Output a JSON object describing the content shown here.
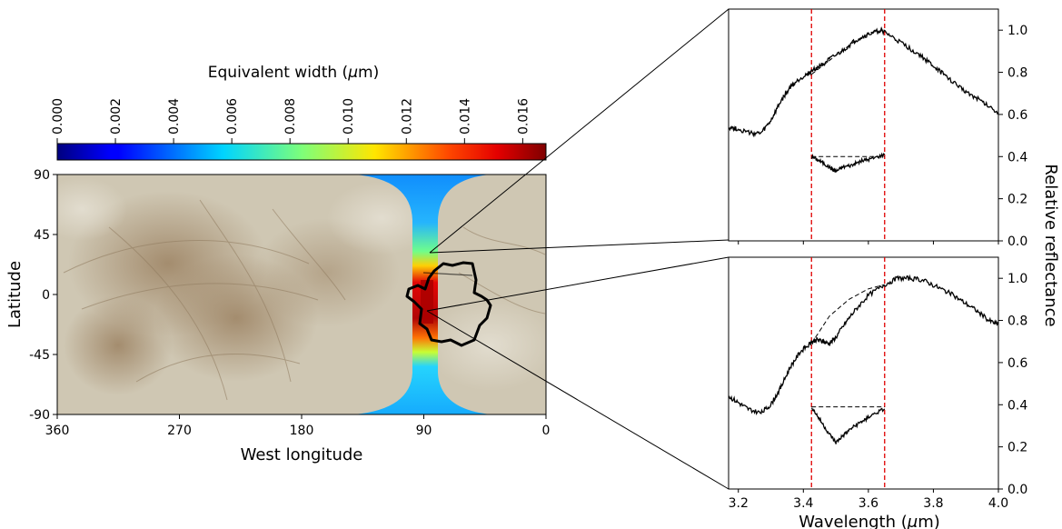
{
  "colorbar": {
    "label_prefix": "Equivalent width (",
    "label_mu": "μ",
    "label_suffix": "m)",
    "ticks": [
      "0.000",
      "0.002",
      "0.004",
      "0.006",
      "0.008",
      "0.010",
      "0.012",
      "0.014",
      "0.016"
    ],
    "range": [
      0.0,
      0.0168
    ],
    "colormap": "jet"
  },
  "map": {
    "xlabel": "West longitude",
    "ylabel": "Latitude",
    "xticks": [
      "360",
      "270",
      "180",
      "90",
      "0"
    ],
    "yticks": [
      "90",
      "45",
      "0",
      "-45",
      "-90"
    ],
    "xlim": [
      360,
      0
    ],
    "ylim": [
      -90,
      90
    ],
    "surface_colors": {
      "base": "#cfc7b3",
      "dark": "#a48c6e",
      "band_low": "#1a9dff",
      "band_peak": "#b40000"
    }
  },
  "spectra": {
    "xlabel_prefix": "Wavelength (",
    "xlabel_mu": "μ",
    "xlabel_suffix": "m)",
    "ylabel": "Relative reflectance",
    "xticks": [
      "3.2",
      "3.4",
      "3.6",
      "3.8",
      "4.0"
    ],
    "yticks": [
      "0.0",
      "0.2",
      "0.4",
      "0.6",
      "0.8",
      "1.0"
    ],
    "xlim": [
      3.17,
      4.0
    ],
    "ylim": [
      0.0,
      1.1
    ],
    "band_limits_um": [
      3.425,
      3.65
    ],
    "band_limit_color": "#e00000"
  },
  "chart_data": [
    {
      "type": "heatmap",
      "description_ref": "map",
      "xlabel": "West longitude",
      "ylabel": "Latitude",
      "xlim": [
        360,
        0
      ],
      "ylim": [
        -90,
        90
      ],
      "colorbar_label": "Equivalent width (μm)",
      "colorbar_range": [
        0.0,
        0.0168
      ],
      "band_profile": {
        "longitude_center": 90,
        "latitudes": [
          -90,
          -75,
          -60,
          -45,
          -30,
          -20,
          -10,
          0,
          10,
          20,
          30,
          45,
          60,
          75,
          90
        ],
        "values": [
          0.0045,
          0.0055,
          0.0065,
          0.0085,
          0.0115,
          0.0155,
          0.0165,
          0.0165,
          0.016,
          0.0135,
          0.0105,
          0.0075,
          0.006,
          0.0055,
          0.005
        ]
      }
    },
    {
      "type": "line",
      "panel": "top",
      "xlabel": "Wavelength (μm)",
      "ylabel": "Relative reflectance",
      "xlim": [
        3.17,
        4.0
      ],
      "ylim": [
        0.0,
        1.1
      ],
      "series": [
        {
          "x": [
            3.17,
            3.2,
            3.24,
            3.27,
            3.3,
            3.33,
            3.36,
            3.39,
            3.42,
            3.45,
            3.48,
            3.52,
            3.56,
            3.6,
            3.64,
            3.68,
            3.72,
            3.76,
            3.8,
            3.84,
            3.88,
            3.92,
            3.96,
            4.0
          ],
          "y": [
            0.54,
            0.53,
            0.51,
            0.51,
            0.57,
            0.66,
            0.73,
            0.77,
            0.8,
            0.83,
            0.86,
            0.9,
            0.95,
            0.98,
            1.0,
            0.96,
            0.92,
            0.88,
            0.83,
            0.78,
            0.73,
            0.69,
            0.65,
            0.61
          ]
        },
        {
          "x": [
            3.425,
            3.45,
            3.48,
            3.5,
            3.52,
            3.55,
            3.58,
            3.61,
            3.65
          ],
          "y": [
            0.4,
            0.38,
            0.35,
            0.33,
            0.35,
            0.36,
            0.38,
            0.39,
            0.41
          ]
        },
        {
          "x": [
            3.425,
            3.5,
            3.56,
            3.61,
            3.65
          ],
          "y": [
            0.79,
            0.88,
            0.95,
            0.99,
            1.0
          ]
        },
        {
          "x": [
            3.425,
            3.65
          ],
          "y": [
            0.4,
            0.4
          ]
        }
      ]
    },
    {
      "type": "line",
      "panel": "bottom",
      "xlabel": "Wavelength (μm)",
      "ylabel": "Relative reflectance",
      "xlim": [
        3.17,
        4.0
      ],
      "ylim": [
        0.0,
        1.1
      ],
      "series": [
        {
          "x": [
            3.17,
            3.2,
            3.23,
            3.27,
            3.3,
            3.33,
            3.36,
            3.39,
            3.42,
            3.44,
            3.46,
            3.48,
            3.5,
            3.53,
            3.56,
            3.6,
            3.65,
            3.69,
            3.73,
            3.77,
            3.81,
            3.85,
            3.89,
            3.93,
            3.97,
            4.0
          ],
          "y": [
            0.44,
            0.41,
            0.38,
            0.36,
            0.4,
            0.48,
            0.58,
            0.65,
            0.69,
            0.71,
            0.7,
            0.69,
            0.72,
            0.79,
            0.85,
            0.92,
            0.97,
            1.0,
            1.0,
            0.99,
            0.96,
            0.93,
            0.89,
            0.85,
            0.8,
            0.78
          ]
        },
        {
          "x": [
            3.425,
            3.45,
            3.48,
            3.5,
            3.52,
            3.55,
            3.58,
            3.61,
            3.65
          ],
          "y": [
            0.39,
            0.33,
            0.26,
            0.22,
            0.25,
            0.29,
            0.32,
            0.35,
            0.38
          ]
        },
        {
          "x": [
            3.425,
            3.48,
            3.54,
            3.6,
            3.65
          ],
          "y": [
            0.69,
            0.82,
            0.9,
            0.95,
            0.97
          ]
        },
        {
          "x": [
            3.425,
            3.65
          ],
          "y": [
            0.39,
            0.39
          ]
        }
      ]
    }
  ]
}
